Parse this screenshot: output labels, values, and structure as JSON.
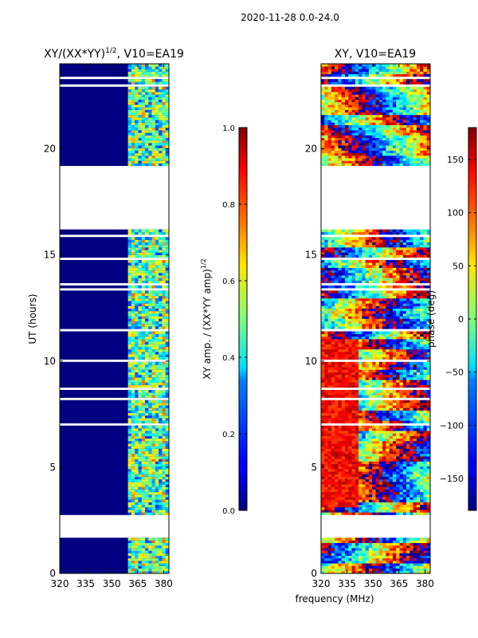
{
  "figure": {
    "suptitle": "2020-11-28 0.0-24.0",
    "shared_xlabel": "frequency (MHz)"
  },
  "chart_data": [
    {
      "type": "heatmap",
      "title": "XY/(XX*YY)",
      "title_sup": "1/2",
      "title_suffix": ", V10=EA19",
      "ylabel": "UT (hours)",
      "xlim": [
        320,
        383
      ],
      "ylim": [
        0,
        24
      ],
      "xticks": [
        320,
        335,
        350,
        365,
        380
      ],
      "yticks": [
        0,
        5,
        10,
        15,
        20
      ],
      "missing_hours": [
        [
          1.7,
          2.75
        ],
        [
          16.2,
          19.2
        ]
      ],
      "active_channel_range_mhz": [
        359,
        383
      ],
      "colorbar": {
        "label": "XY amp. / (XX*YY amp)",
        "label_sup": "1/2",
        "range": [
          0.0,
          1.0
        ],
        "ticks": [
          "0.0",
          "0.2",
          "0.4",
          "0.6",
          "0.8",
          "1.0"
        ],
        "colormap": "jet"
      }
    },
    {
      "type": "heatmap",
      "title": "XY, V10=EA19",
      "ylabel": "",
      "xlim": [
        320,
        383
      ],
      "ylim": [
        0,
        24
      ],
      "xticks": [
        320,
        335,
        350,
        365,
        380
      ],
      "yticks": [
        0,
        5,
        10,
        15,
        20
      ],
      "missing_hours": [
        [
          1.7,
          2.75
        ],
        [
          16.2,
          19.2
        ]
      ],
      "colorbar": {
        "label": "phase (deg)",
        "range": [
          -180,
          180
        ],
        "ticks": [
          "−150",
          "−100",
          "−50",
          "0",
          "50",
          "100",
          "150"
        ],
        "tick_values": [
          -150,
          -100,
          -50,
          0,
          50,
          100,
          150
        ],
        "colormap": "jet"
      }
    }
  ]
}
